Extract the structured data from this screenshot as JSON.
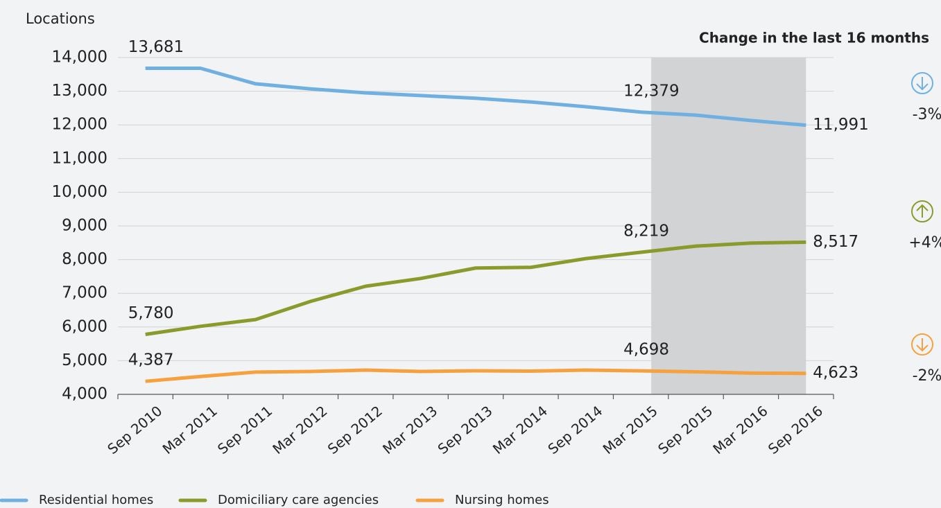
{
  "chart_data": {
    "type": "line",
    "y_label": "Locations",
    "annotation": "Change in the last 16 months",
    "highlight_range": [
      9,
      12
    ],
    "categories": [
      "Sep 2010",
      "Mar 2011",
      "Sep 2011",
      "Mar 2012",
      "Sep 2012",
      "Mar 2013",
      "Sep 2013",
      "Mar 2014",
      "Sep 2014",
      "Mar 2015",
      "Sep 2015",
      "Mar 2016",
      "Sep 2016"
    ],
    "series": [
      {
        "name": "Residential homes",
        "color": "#6fb0e0",
        "values": [
          13681,
          13681,
          13220,
          13070,
          12950,
          12870,
          12790,
          12680,
          12540,
          12379,
          12290,
          12130,
          11991
        ],
        "value_labels": [
          "13,681",
          null,
          null,
          null,
          null,
          null,
          null,
          null,
          null,
          "12,379",
          null,
          null,
          "11,991"
        ],
        "change": "-3%",
        "arrow": "down"
      },
      {
        "name": "Domiciliary care agencies",
        "color": "#8a9a2b",
        "values": [
          5780,
          6020,
          6220,
          6760,
          7210,
          7440,
          7750,
          7770,
          8030,
          8219,
          8400,
          8490,
          8517
        ],
        "value_labels": [
          "5,780",
          null,
          null,
          null,
          null,
          null,
          null,
          null,
          null,
          "8,219",
          null,
          null,
          "8,517"
        ],
        "change": "+4%",
        "arrow": "up"
      },
      {
        "name": "Nursing homes",
        "color": "#f7a13e",
        "values": [
          4387,
          4530,
          4660,
          4680,
          4720,
          4680,
          4700,
          4690,
          4720,
          4698,
          4670,
          4630,
          4623
        ],
        "value_labels": [
          "4,387",
          null,
          null,
          null,
          null,
          null,
          null,
          null,
          null,
          "4,698",
          null,
          null,
          "4,623"
        ],
        "change": "-2%",
        "arrow": "down"
      }
    ],
    "ylim": [
      4000,
      14000
    ],
    "yticks": [
      {
        "value": 4000,
        "label": "4,000"
      },
      {
        "value": 5000,
        "label": "5,000"
      },
      {
        "value": 6000,
        "label": "6,000"
      },
      {
        "value": 7000,
        "label": "7,000"
      },
      {
        "value": 8000,
        "label": "8,000"
      },
      {
        "value": 9000,
        "label": "9,000"
      },
      {
        "value": 10000,
        "label": "10,000"
      },
      {
        "value": 11000,
        "label": "11,000"
      },
      {
        "value": 12000,
        "label": "12,000"
      },
      {
        "value": 13000,
        "label": "13,000"
      },
      {
        "value": 14000,
        "label": "14,000"
      }
    ],
    "grid": true
  }
}
